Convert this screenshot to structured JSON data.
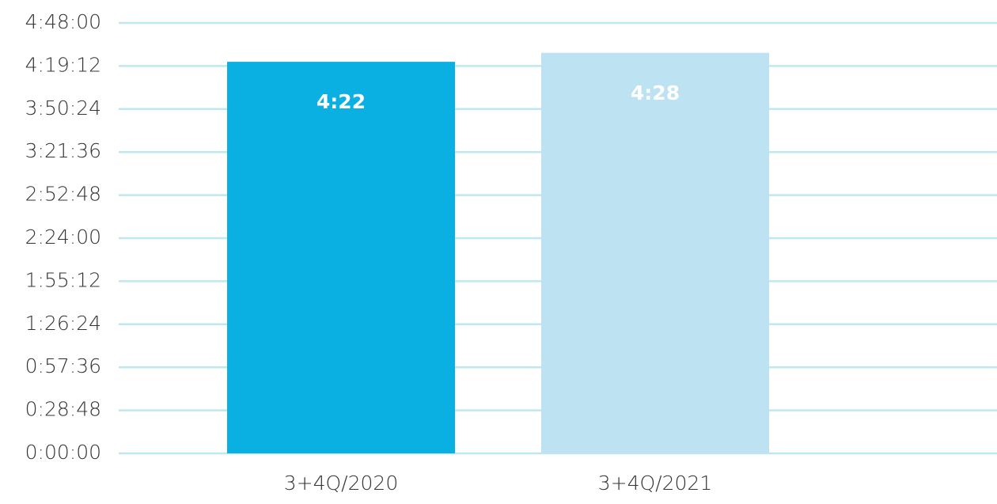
{
  "chart_data": {
    "type": "bar",
    "categories": [
      "3+4Q/2020",
      "3+4Q/2021"
    ],
    "values": [
      262,
      268
    ],
    "value_labels": [
      "4:22",
      "4:28"
    ],
    "colors": [
      "#0ab0e2",
      "#bde2f2"
    ],
    "ylim": [
      0,
      288
    ],
    "yticks": [
      {
        "value": 0,
        "label": "0:00:00"
      },
      {
        "value": 28.8,
        "label": "0:28:48"
      },
      {
        "value": 57.6,
        "label": "0:57:36"
      },
      {
        "value": 86.4,
        "label": "1:26:24"
      },
      {
        "value": 115.2,
        "label": "1:55:12"
      },
      {
        "value": 144,
        "label": "2:24:00"
      },
      {
        "value": 172.8,
        "label": "2:52:48"
      },
      {
        "value": 201.6,
        "label": "3:21:36"
      },
      {
        "value": 230.4,
        "label": "3:50:24"
      },
      {
        "value": 259.2,
        "label": "4:19:12"
      },
      {
        "value": 288,
        "label": "4:48:00"
      }
    ],
    "grid": true
  }
}
